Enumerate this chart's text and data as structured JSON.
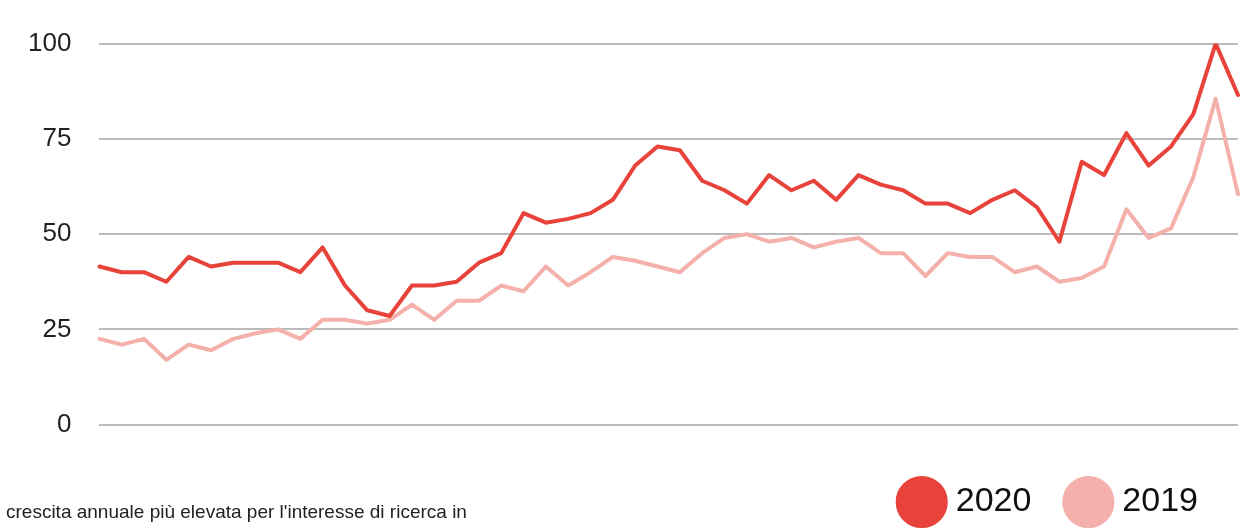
{
  "chart_data": {
    "type": "line",
    "categories": [
      null,
      null,
      null,
      null,
      null,
      null,
      null,
      null,
      null,
      null,
      null,
      null,
      null,
      null,
      null,
      null,
      null,
      null,
      null,
      null,
      null,
      null,
      null,
      null,
      null,
      null,
      null,
      null,
      null,
      null,
      null,
      null,
      null,
      null,
      null,
      null,
      null,
      null,
      null,
      null,
      null,
      null,
      null,
      null,
      null,
      null,
      null,
      null,
      null,
      null,
      null,
      null
    ],
    "series": [
      {
        "name": "2020",
        "color": "#e8433a",
        "values": [
          41.5,
          40,
          40,
          37.5,
          44,
          41.5,
          42.5,
          42.5,
          42.5,
          40,
          46.5,
          36.5,
          30,
          28.5,
          36.5,
          36.5,
          37.5,
          42.5,
          45,
          55.5,
          53,
          54,
          55.5,
          59,
          68,
          73,
          72,
          64,
          61.5,
          58,
          65.5,
          61.5,
          64,
          59,
          65.5,
          63,
          61.5,
          58,
          58,
          55.5,
          59,
          61.5,
          57,
          48,
          69,
          65.5,
          76.5,
          68,
          73,
          81.5,
          100,
          86.5
        ]
      },
      {
        "name": "2019",
        "color": "#f4b0aa",
        "values": [
          22.5,
          21,
          22.5,
          17,
          21,
          19.5,
          22.5,
          24,
          25,
          22.5,
          27.5,
          27.5,
          26.5,
          27.5,
          31.5,
          27.5,
          32.5,
          32.5,
          36.5,
          35,
          41.5,
          36.5,
          40,
          44,
          43,
          41.5,
          40,
          45,
          49,
          50,
          48,
          49,
          46.5,
          48,
          49,
          45,
          45,
          39,
          45,
          44,
          44,
          40,
          41.5,
          37.5,
          38.5,
          41.5,
          56.5,
          49,
          51.5,
          65,
          85.5,
          60.5
        ]
      }
    ],
    "ylim": [
      0,
      100
    ],
    "yticks": [
      0,
      25,
      50,
      75,
      100
    ],
    "grid": "y",
    "legend": "bottom right",
    "marker": "none",
    "line_style": "solid",
    "annotations": [
      "crescita annuale più elevata per l'interesse di ricerca in"
    ]
  }
}
